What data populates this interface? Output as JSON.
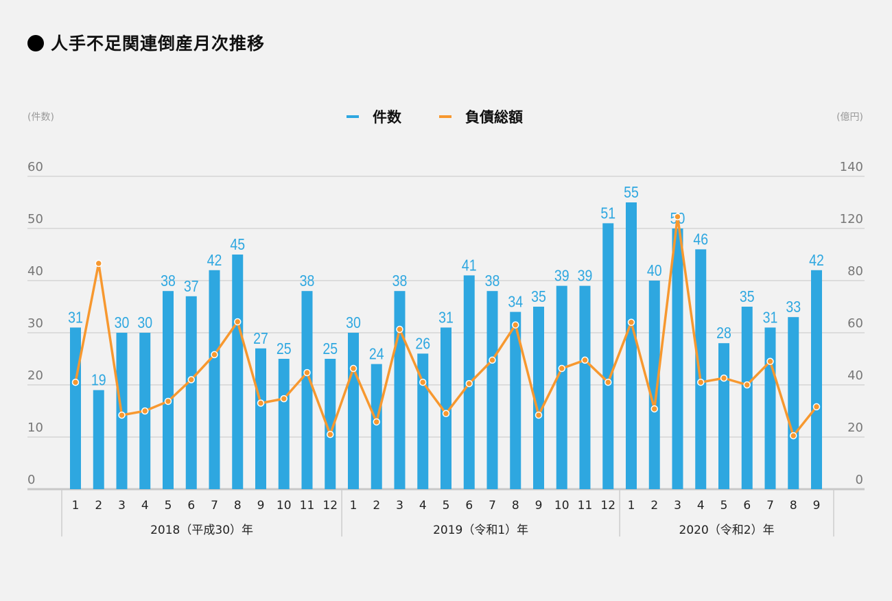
{
  "title": "人手不足関連倒産月次推移",
  "colors": {
    "bar": "#2ea7e0",
    "line": "#f7982f",
    "grid": "#d4d4d4",
    "axis_text": "#777"
  },
  "chart_data": {
    "type": "bar+line",
    "title": "人手不足関連倒産月次推移",
    "left_axis_unit": "(件数)",
    "right_axis_unit": "(億円)",
    "left_ticks": [
      "0",
      "10",
      "20",
      "30",
      "40",
      "50",
      "60"
    ],
    "right_ticks": [
      "0",
      "20",
      "40",
      "60",
      "80",
      "120",
      "140"
    ],
    "ylim_left": [
      0,
      60
    ],
    "ylim_right": [
      0,
      120
    ],
    "grid": true,
    "legend_position": "top-center",
    "series": [
      {
        "name": "件数",
        "type": "bar",
        "axis": "left",
        "values": [
          31,
          19,
          30,
          30,
          38,
          37,
          42,
          45,
          27,
          25,
          38,
          25,
          30,
          24,
          38,
          26,
          31,
          41,
          38,
          34,
          35,
          39,
          39,
          51,
          55,
          40,
          50,
          46,
          28,
          35,
          31,
          33,
          42
        ]
      },
      {
        "name": "負債総額",
        "type": "line",
        "axis": "right",
        "values": [
          41,
          86.6,
          28.4,
          30,
          33.7,
          42,
          51.6,
          64.2,
          33,
          34.7,
          44.7,
          21,
          46.3,
          25.8,
          61.3,
          41,
          29,
          40.5,
          49.5,
          63,
          28.4,
          46.3,
          49.5,
          41,
          64,
          30.8,
          104.5,
          41,
          42.6,
          40,
          49,
          20.5,
          31.6
        ]
      }
    ],
    "categories": [
      "1",
      "2",
      "3",
      "4",
      "5",
      "6",
      "7",
      "8",
      "9",
      "10",
      "11",
      "12",
      "1",
      "2",
      "3",
      "4",
      "5",
      "6",
      "7",
      "8",
      "9",
      "10",
      "11",
      "12",
      "1",
      "2",
      "3",
      "4",
      "5",
      "6",
      "7",
      "8",
      "9"
    ],
    "groups": [
      {
        "label": "2018（平成30）年",
        "count": 12
      },
      {
        "label": "2019（令和1）年",
        "count": 12
      },
      {
        "label": "2020（令和2）年",
        "count": 9
      }
    ]
  }
}
